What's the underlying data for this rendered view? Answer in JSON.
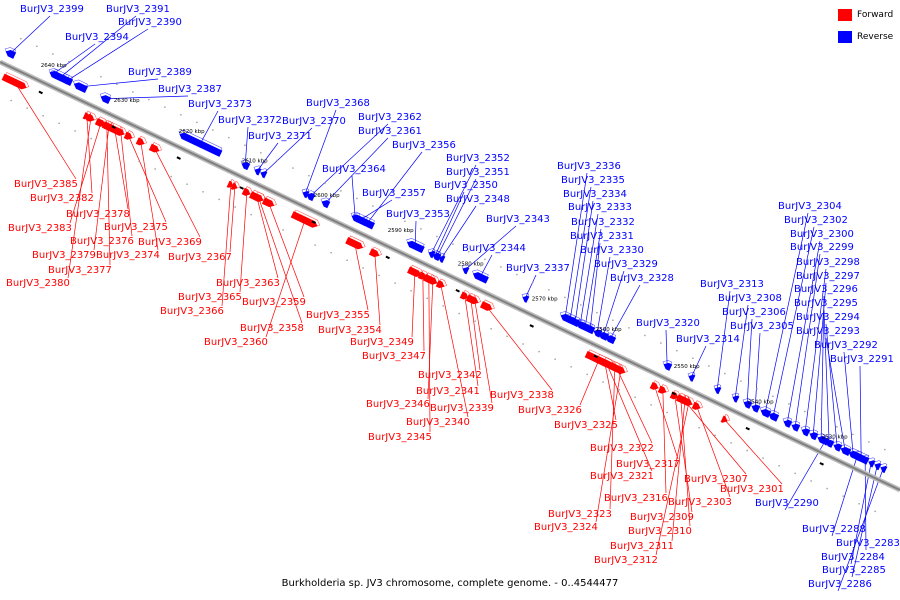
{
  "legend": [
    {
      "label": "Forward",
      "color": "#ff0000"
    },
    {
      "label": "Reverse",
      "color": "#0000ff"
    }
  ],
  "colors": {
    "forward": "#ff0000",
    "reverse": "#0000ff",
    "backbone": "#808080"
  },
  "caption": "Burkholderia sp. JV3 chromosome, complete genome. - 0..4544477",
  "ticks": [
    "2640 kbp",
    "2630 kbp",
    "2620 kbp",
    "2610 kbp",
    "2600 kbp",
    "2590 kbp",
    "2580 kbp",
    "2570 kbp",
    "2560 kbp",
    "2550 kbp",
    "2540 kbp",
    "2530 kbp"
  ],
  "reverse_genes": [
    "BurJV3_2399",
    "BurJV3_2391",
    "BurJV3_2390",
    "BurJV3_2394",
    "BurJV3_2389",
    "BurJV3_2387",
    "BurJV3_2373",
    "BurJV3_2368",
    "BurJV3_2372",
    "BurJV3_2370",
    "BurJV3_2362",
    "BurJV3_2371",
    "BurJV3_2361",
    "BurJV3_2356",
    "BurJV3_2364",
    "BurJV3_2352",
    "BurJV3_2351",
    "BurJV3_2350",
    "BurJV3_2357",
    "BurJV3_2348",
    "BurJV3_2353",
    "BurJV3_2343",
    "BurJV3_2344",
    "BurJV3_2336",
    "BurJV3_2335",
    "BurJV3_2334",
    "BurJV3_2333",
    "BurJV3_2332",
    "BurJV3_2331",
    "BurJV3_2330",
    "BurJV3_2329",
    "BurJV3_2337",
    "BurJV3_2328",
    "BurJV3_2320",
    "BurJV3_2314",
    "BurJV3_2313",
    "BurJV3_2308",
    "BurJV3_2306",
    "BurJV3_2305",
    "BurJV3_2304",
    "BurJV3_2302",
    "BurJV3_2300",
    "BurJV3_2299",
    "BurJV3_2298",
    "BurJV3_2297",
    "BurJV3_2296",
    "BurJV3_2295",
    "BurJV3_2294",
    "BurJV3_2293",
    "BurJV3_2292",
    "BurJV3_2291",
    "BurJV3_2290",
    "BurJV3_2288",
    "BurJV3_2283",
    "BurJV3_2284",
    "BurJV3_2285",
    "BurJV3_2286"
  ],
  "forward_genes": [
    "BurJV3_2385",
    "BurJV3_2382",
    "BurJV3_2378",
    "BurJV3_2383",
    "BurJV3_2375",
    "BurJV3_2376",
    "BurJV3_2369",
    "BurJV3_2379",
    "BurJV3_2374",
    "BurJV3_2367",
    "BurJV3_2377",
    "BurJV3_2380",
    "BurJV3_2363",
    "BurJV3_2365",
    "BurJV3_2359",
    "BurJV3_2366",
    "BurJV3_2355",
    "BurJV3_2358",
    "BurJV3_2354",
    "BurJV3_2360",
    "BurJV3_2349",
    "BurJV3_2347",
    "BurJV3_2342",
    "BurJV3_2341",
    "BurJV3_2338",
    "BurJV3_2346",
    "BurJV3_2339",
    "BurJV3_2326",
    "BurJV3_2340",
    "BurJV3_2325",
    "BurJV3_2345",
    "BurJV3_2322",
    "BurJV3_2317",
    "BurJV3_2321",
    "BurJV3_2307",
    "BurJV3_2301",
    "BurJV3_2316",
    "BurJV3_2303",
    "BurJV3_2309",
    "BurJV3_2323",
    "BurJV3_2324",
    "BurJV3_2310",
    "BurJV3_2311",
    "BurJV3_2312"
  ]
}
